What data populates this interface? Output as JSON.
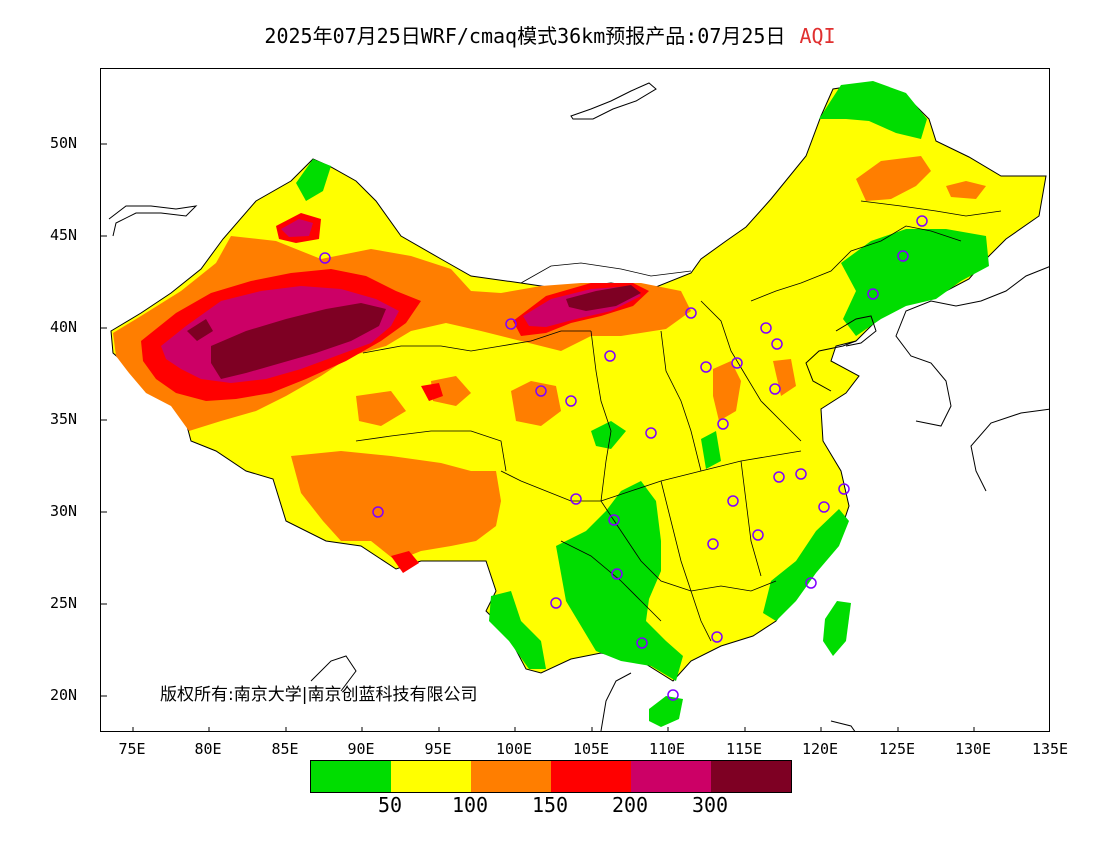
{
  "title": {
    "main": "2025年07月25日WRF/cmaq模式36km预报产品:07月25日",
    "variable": "AQI"
  },
  "axes": {
    "lat_ticks": [
      "50N",
      "45N",
      "40N",
      "35N",
      "30N",
      "25N",
      "20N"
    ],
    "lon_ticks": [
      "75E",
      "80E",
      "85E",
      "90E",
      "95E",
      "100E",
      "105E",
      "110E",
      "115E",
      "120E",
      "125E",
      "130E",
      "135E"
    ]
  },
  "copyright": "版权所有:南京大学|南京创蓝科技有限公司",
  "legend": {
    "colors": [
      "#00dd00",
      "#ffff00",
      "#ff7e00",
      "#ff0000",
      "#cc0066",
      "#7e0023"
    ],
    "labels": [
      "50",
      "100",
      "150",
      "200",
      "300"
    ]
  },
  "map": {
    "colors": {
      "good": "#00dd00",
      "moderate": "#ffff00",
      "usg": "#ff7e00",
      "unhealthy": "#ff0000",
      "very_unhealthy": "#cc0066",
      "hazardous": "#7e0023",
      "border": "#000000",
      "station": "#8000ff"
    }
  }
}
